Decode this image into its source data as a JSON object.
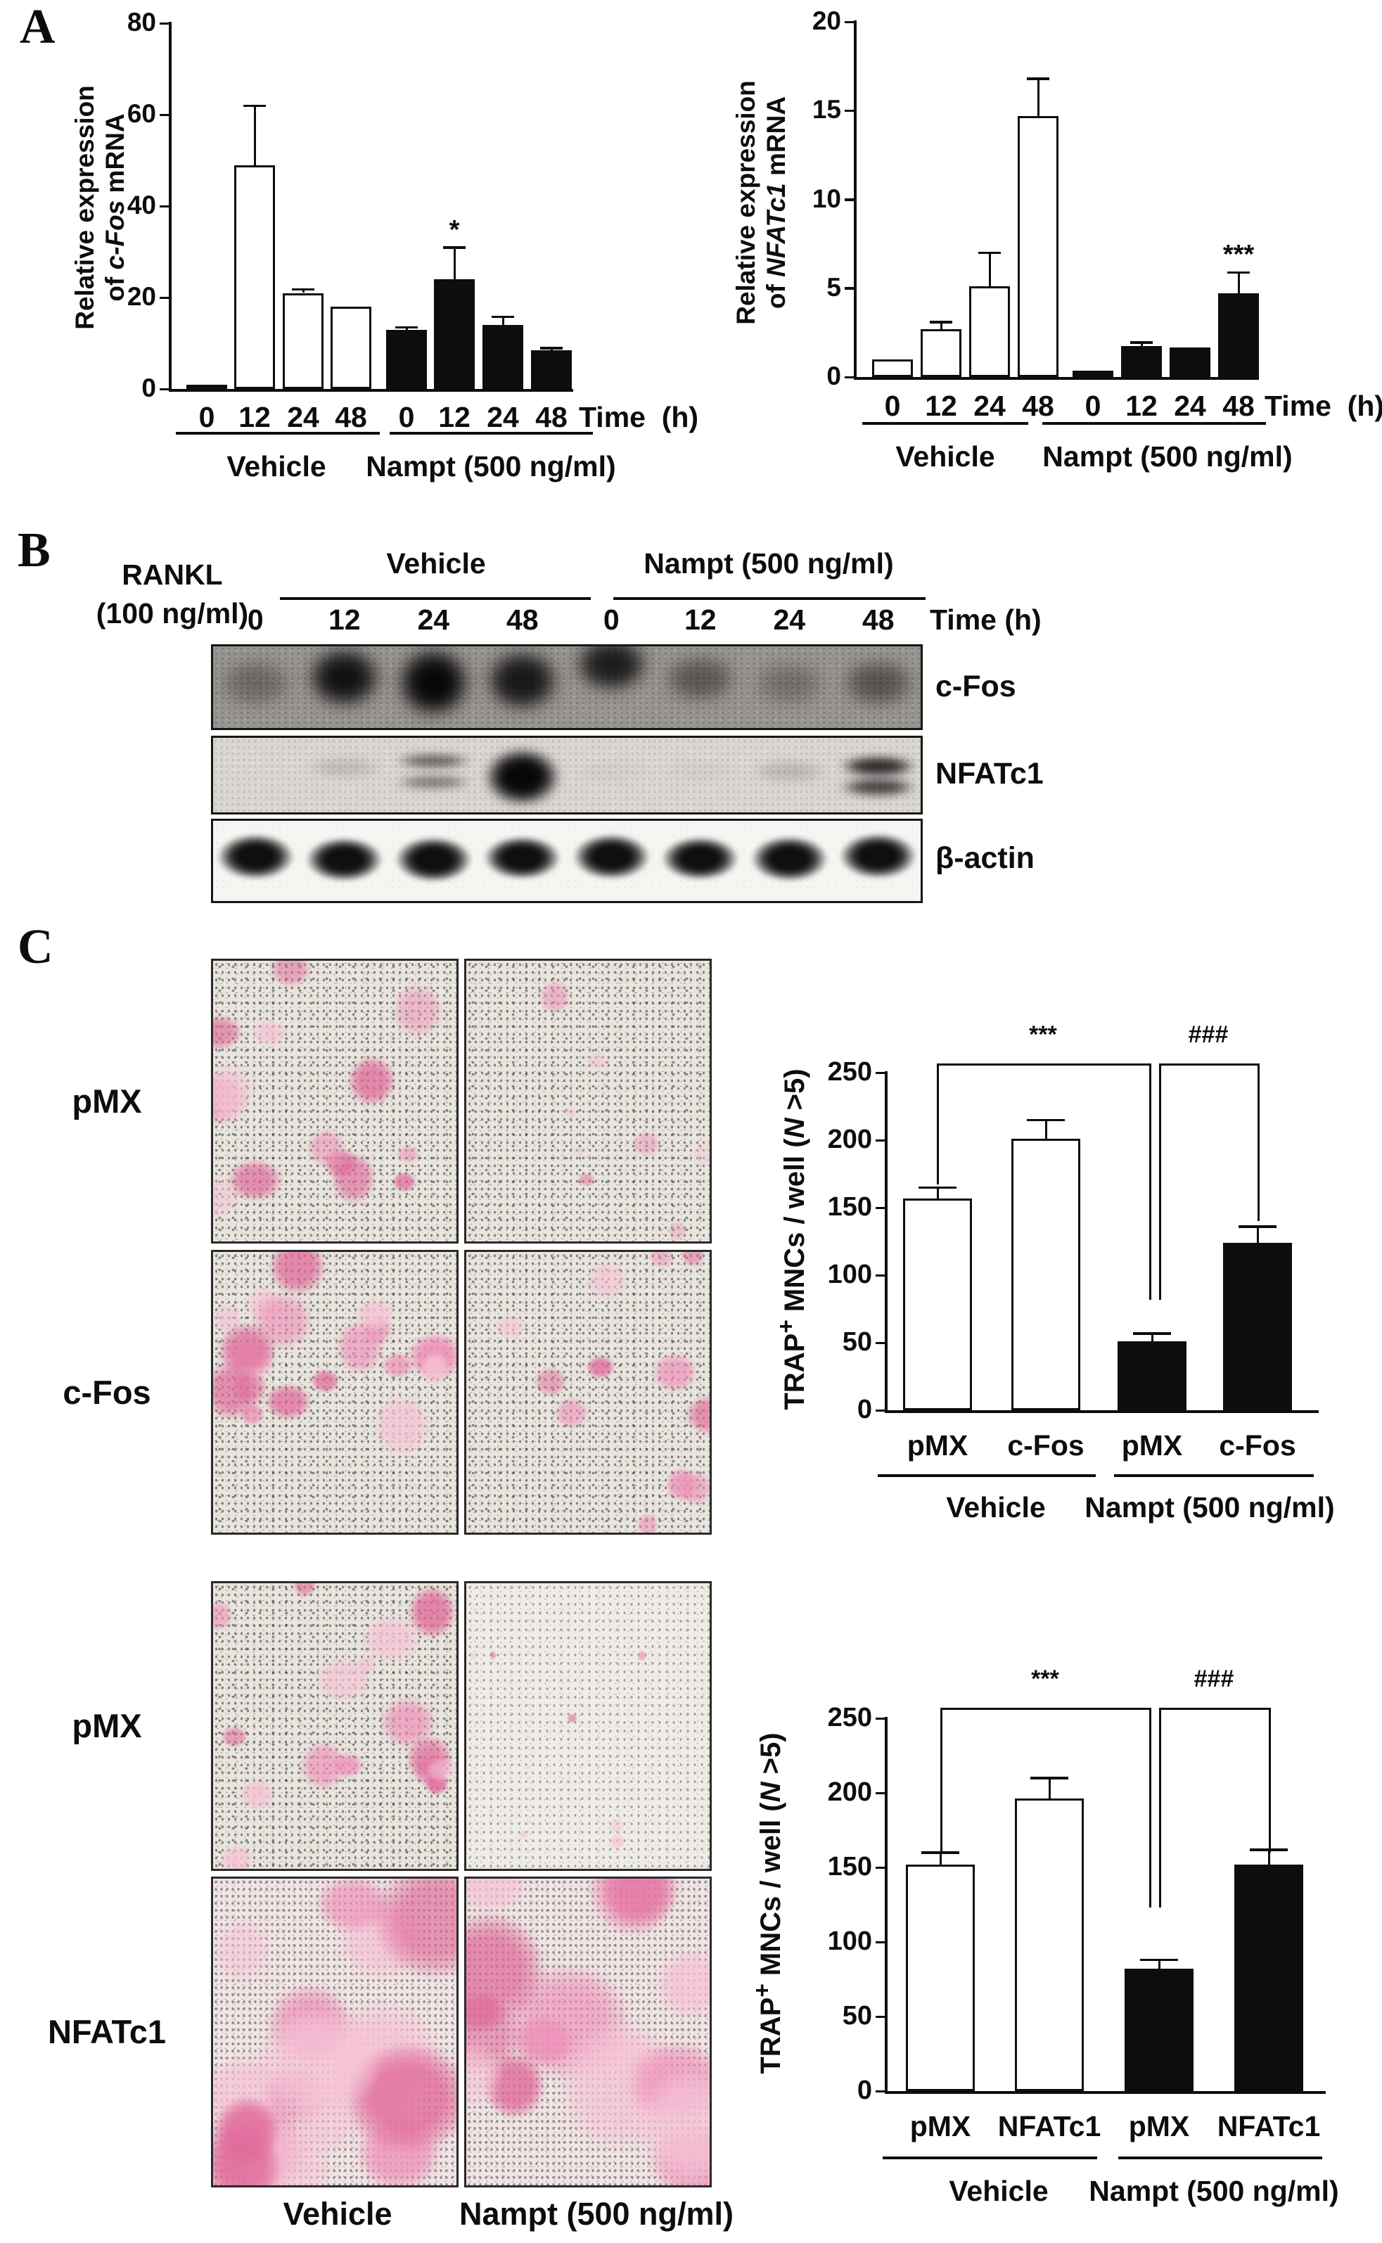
{
  "figure": {
    "type": "scientific-figure",
    "panel_letters": {
      "a": "A",
      "b": "B",
      "c": "C"
    }
  },
  "colors": {
    "vehicle_bar_fill": "#ffffff",
    "nampt_bar_fill": "#0d0d0d",
    "axis_color": "#0d0d0d",
    "trap_stain_pink": "#ee8fb8",
    "trap_stain_pink_light": "#f6c3d6",
    "trap_stain_pink_deep": "#e06a9a",
    "speckle_gray_green": "#49544b",
    "blot_bg_dark": "#989590",
    "blot_bg_light": "#d9d6d1"
  },
  "chart_data": [
    {
      "id": "a1",
      "type": "bar",
      "ylabel_segments": [
        {
          "t": "Relative expression",
          "br": true
        },
        {
          "t": "of "
        },
        {
          "t": "c-Fos",
          "italic": true
        },
        {
          "t": " mRNA"
        }
      ],
      "ylim": [
        0,
        80
      ],
      "yticks": [
        0,
        20,
        40,
        60,
        80
      ],
      "categories": [
        "0",
        "12",
        "24",
        "48",
        "0",
        "12",
        "24",
        "48"
      ],
      "values": [
        1,
        49,
        21,
        18,
        13,
        24,
        14,
        8.5
      ],
      "errors": [
        0,
        13,
        0.8,
        0,
        0.5,
        7,
        1.8,
        0.5
      ],
      "bar_styles": [
        "white",
        "white",
        "white",
        "white",
        "black",
        "black",
        "black",
        "black"
      ],
      "annotations": [
        {
          "bar": 5,
          "text": "*"
        }
      ],
      "x_axis_label": "Time  (h)",
      "groups": [
        {
          "label": "Vehicle",
          "from": 0,
          "to": 3
        },
        {
          "label": "Nampt (500 ng/ml)",
          "from": 4,
          "to": 7
        }
      ],
      "grid": false,
      "legend": "none"
    },
    {
      "id": "a2",
      "type": "bar",
      "ylabel_segments": [
        {
          "t": "Relative expression",
          "br": true
        },
        {
          "t": "of "
        },
        {
          "t": "NFATc1",
          "italic": true
        },
        {
          "t": " mRNA"
        }
      ],
      "ylim": [
        0,
        20
      ],
      "yticks": [
        0,
        5,
        10,
        15,
        20
      ],
      "categories": [
        "0",
        "12",
        "24",
        "48",
        "0",
        "12",
        "24",
        "48"
      ],
      "values": [
        1,
        2.7,
        5.1,
        14.7,
        0.35,
        1.75,
        1.65,
        4.7
      ],
      "errors": [
        0,
        0.4,
        1.9,
        2.1,
        0,
        0.2,
        0,
        1.2
      ],
      "bar_styles": [
        "white",
        "white",
        "white",
        "white",
        "black",
        "black",
        "black",
        "black"
      ],
      "annotations": [
        {
          "bar": 7,
          "text": "***"
        }
      ],
      "x_axis_label": "Time  (h)",
      "groups": [
        {
          "label": "Vehicle",
          "from": 0,
          "to": 3
        },
        {
          "label": "Nampt (500 ng/ml)",
          "from": 4,
          "to": 7
        }
      ],
      "grid": false,
      "legend": "none"
    },
    {
      "id": "c1",
      "type": "bar",
      "ylabel_segments": [
        {
          "t": "TRAP"
        },
        {
          "t": "+",
          "sup": true
        },
        {
          "t": " MNCs / well ("
        },
        {
          "t": "N",
          "italic": true
        },
        {
          "t": " >5)"
        }
      ],
      "ylim": [
        0,
        250
      ],
      "yticks": [
        0,
        50,
        100,
        150,
        200,
        250
      ],
      "categories": [
        "pMX",
        "c-Fos",
        "pMX",
        "c-Fos"
      ],
      "values": [
        157,
        201,
        51,
        124
      ],
      "errors": [
        8,
        14,
        6,
        12
      ],
      "bar_styles": [
        "white",
        "white",
        "black",
        "black"
      ],
      "sig_brackets": [
        {
          "label": "***"
        },
        {
          "label": "###"
        }
      ],
      "groups": [
        {
          "label": "Vehicle",
          "from": 0,
          "to": 1
        },
        {
          "label": "Nampt (500 ng/ml)",
          "from": 2,
          "to": 3
        }
      ],
      "grid": false,
      "legend": "none"
    },
    {
      "id": "c2",
      "type": "bar",
      "ylabel_segments": [
        {
          "t": "TRAP"
        },
        {
          "t": "+",
          "sup": true
        },
        {
          "t": " MNCs / well ("
        },
        {
          "t": "N",
          "italic": true
        },
        {
          "t": " >5)"
        }
      ],
      "ylim": [
        0,
        250
      ],
      "yticks": [
        0,
        50,
        100,
        150,
        200,
        250
      ],
      "categories": [
        "pMX",
        "NFATc1",
        "pMX",
        "NFATc1"
      ],
      "values": [
        152,
        196,
        82,
        152
      ],
      "errors": [
        8,
        14,
        6,
        10
      ],
      "bar_styles": [
        "white",
        "white",
        "black",
        "black"
      ],
      "sig_brackets": [
        {
          "label": "***"
        },
        {
          "label": "###"
        }
      ],
      "groups": [
        {
          "label": "Vehicle",
          "from": 0,
          "to": 1
        },
        {
          "label": "Nampt (500 ng/ml)",
          "from": 2,
          "to": 3
        }
      ],
      "grid": false,
      "legend": "none"
    }
  ],
  "western_blot": {
    "treatment_line1": "RANKL",
    "treatment_line2": "(100 ng/ml)",
    "group_headers": [
      "Vehicle",
      "Nampt (500 ng/ml)"
    ],
    "lane_labels": [
      "0",
      "12",
      "24",
      "48",
      "0",
      "12",
      "24",
      "48"
    ],
    "time_label": "Time (h)",
    "strips": [
      {
        "name": "c-Fos",
        "bands": [
          {
            "v": 0.3,
            "y": 45,
            "h": 62
          },
          {
            "v": 0.92,
            "y": 38,
            "h": 80
          },
          {
            "v": 1.0,
            "y": 44,
            "h": 92
          },
          {
            "v": 0.88,
            "y": 42,
            "h": 80
          },
          {
            "v": 0.85,
            "y": 22,
            "h": 72
          },
          {
            "v": 0.42,
            "y": 40,
            "h": 62
          },
          {
            "v": 0.26,
            "y": 45,
            "h": 58
          },
          {
            "v": 0.45,
            "y": 45,
            "h": 62
          }
        ]
      },
      {
        "name": "NFATc1",
        "bands": [
          {
            "v": 0.0,
            "y": 45,
            "h": 30
          },
          {
            "v": 0.12,
            "y": 40,
            "h": 30
          },
          {
            "v": 0.55,
            "y": 45,
            "h": 42,
            "d": true
          },
          {
            "v": 1.0,
            "y": 52,
            "h": 80
          },
          {
            "v": 0.03,
            "y": 45,
            "h": 30
          },
          {
            "v": 0.03,
            "y": 45,
            "h": 30
          },
          {
            "v": 0.14,
            "y": 45,
            "h": 30
          },
          {
            "v": 0.82,
            "y": 52,
            "h": 58,
            "d": true
          }
        ]
      },
      {
        "name": "β-actin",
        "bands": [
          {
            "v": 0.97,
            "y": 45,
            "h": 58
          },
          {
            "v": 0.97,
            "y": 48,
            "h": 56
          },
          {
            "v": 0.97,
            "y": 48,
            "h": 58
          },
          {
            "v": 0.97,
            "y": 46,
            "h": 56
          },
          {
            "v": 0.97,
            "y": 45,
            "h": 58
          },
          {
            "v": 0.97,
            "y": 47,
            "h": 56
          },
          {
            "v": 0.97,
            "y": 47,
            "h": 58
          },
          {
            "v": 0.97,
            "y": 44,
            "h": 58
          }
        ]
      }
    ]
  },
  "microscopy": {
    "row_labels": [
      "pMX",
      "c-Fos",
      "pMX",
      "NFATc1"
    ],
    "col_labels": [
      "Vehicle",
      "Nampt (500 ng/ml)"
    ],
    "stain": "TRAP",
    "photos": [
      {
        "row": 0,
        "col": 0,
        "condition": "pMX + Vehicle",
        "density": "medium",
        "blobs": 14,
        "min": 30,
        "max": 80,
        "alpha": 0.72,
        "seed": 11,
        "style": ""
      },
      {
        "row": 0,
        "col": 1,
        "condition": "pMX + Nampt",
        "density": "sparse",
        "blobs": 8,
        "min": 16,
        "max": 46,
        "alpha": 0.55,
        "seed": 22,
        "style": ""
      },
      {
        "row": 1,
        "col": 0,
        "condition": "c-Fos + Vehicle",
        "density": "dense",
        "blobs": 18,
        "min": 34,
        "max": 92,
        "alpha": 0.8,
        "seed": 33,
        "style": ""
      },
      {
        "row": 1,
        "col": 1,
        "condition": "c-Fos + Nampt",
        "density": "medium",
        "blobs": 12,
        "min": 26,
        "max": 72,
        "alpha": 0.7,
        "seed": 44,
        "style": ""
      },
      {
        "row": 2,
        "col": 0,
        "condition": "pMX + Vehicle",
        "density": "medium-high",
        "blobs": 16,
        "min": 30,
        "max": 88,
        "alpha": 0.78,
        "seed": 55,
        "style": ""
      },
      {
        "row": 2,
        "col": 1,
        "condition": "pMX + Nampt",
        "density": "very-sparse",
        "blobs": 7,
        "min": 8,
        "max": 24,
        "alpha": 0.6,
        "seed": 66,
        "style": "light"
      },
      {
        "row": 3,
        "col": 0,
        "condition": "NFATc1 + Vehicle",
        "density": "confluent",
        "blobs": 17,
        "min": 70,
        "max": 195,
        "alpha": 0.8,
        "seed": 77,
        "style": "conf"
      },
      {
        "row": 3,
        "col": 1,
        "condition": "NFATc1 + Nampt",
        "density": "confluent",
        "blobs": 16,
        "min": 65,
        "max": 185,
        "alpha": 0.78,
        "seed": 88,
        "style": "conf"
      }
    ]
  }
}
